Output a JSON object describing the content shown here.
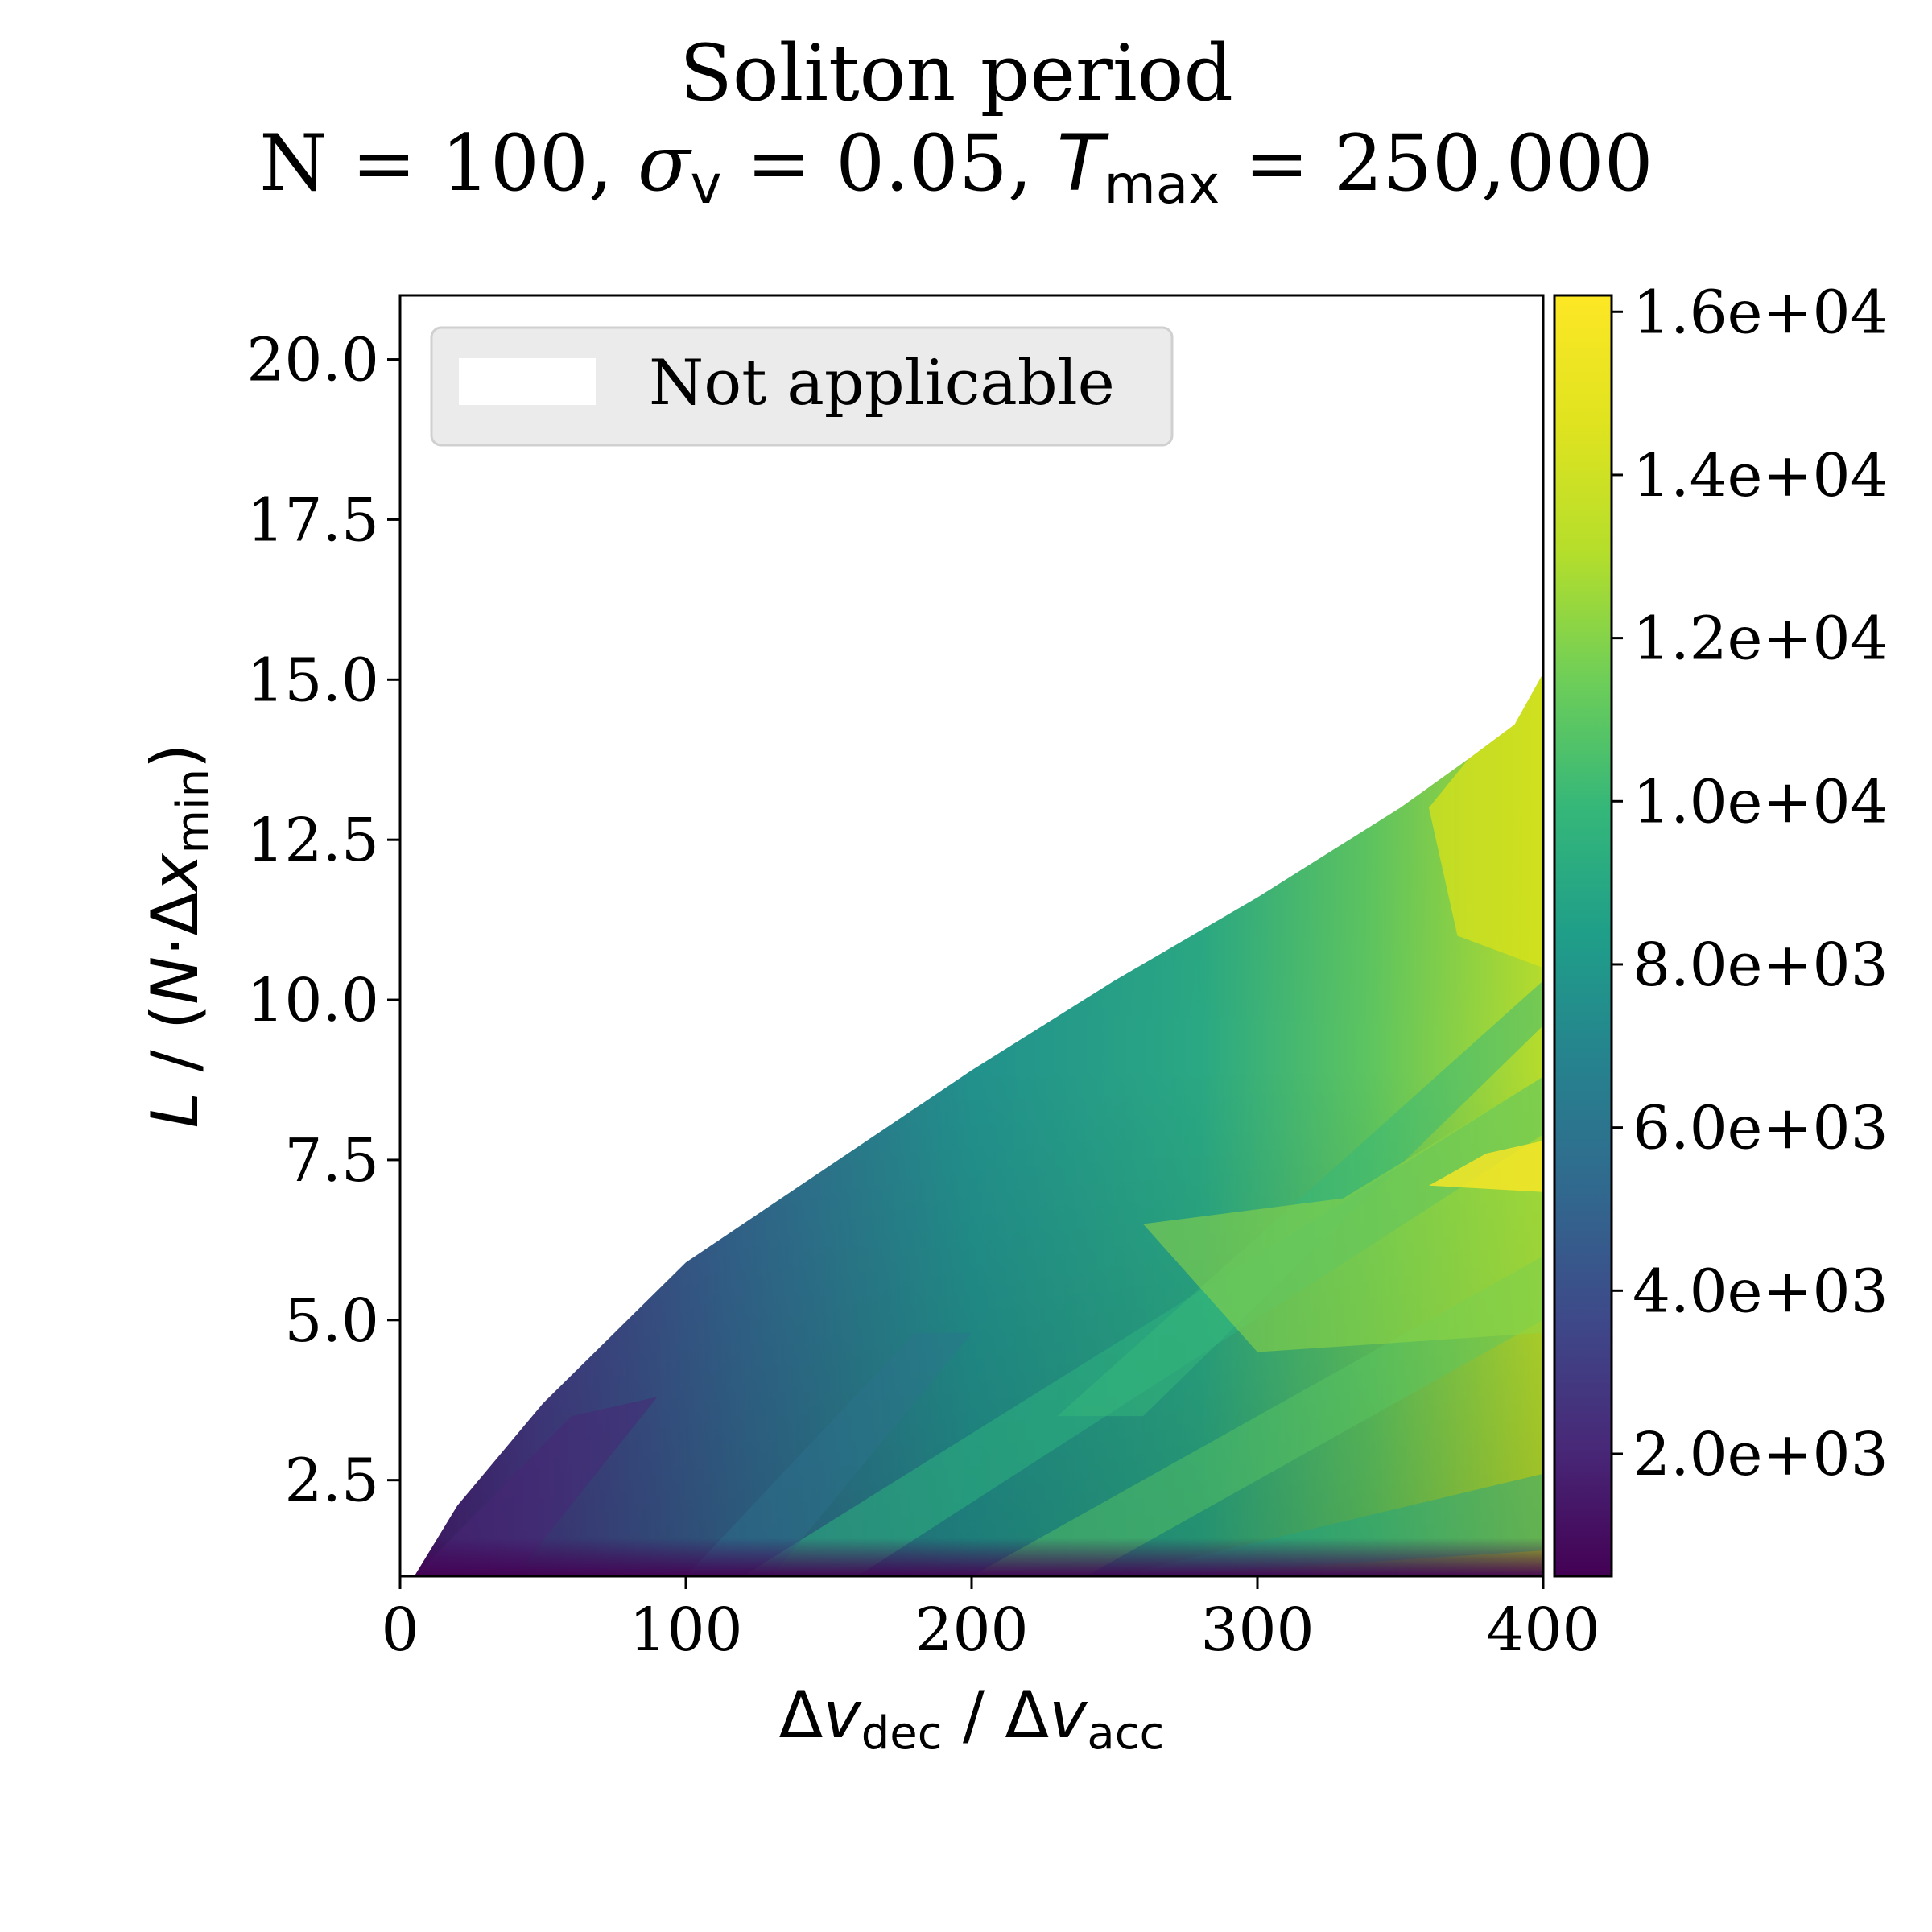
{
  "chart_data": {
    "type": "heatmap",
    "title": "Soliton period",
    "subtitle": {
      "prefix": "N = 100, ",
      "sigma": "σ",
      "sigma_sub": "v",
      "middle": " = 0.05, ",
      "t": "T",
      "t_sub": "max",
      "suffix": " = 250,000"
    },
    "xlabel": {
      "p1": "Δ",
      "v1": "v",
      "s1": "dec",
      "mid": " / Δ",
      "v2": "v",
      "s2": "acc"
    },
    "ylabel": {
      "p1": "L",
      "mid": " / (",
      "n": "N",
      "dot": "·Δ",
      "x": "x",
      "sub": "min",
      "close": ")"
    },
    "xlim": [
      0,
      400
    ],
    "ylim": [
      1.0,
      21.0
    ],
    "xticks": [
      0,
      100,
      200,
      300,
      400
    ],
    "xtick_labels": [
      "0",
      "100",
      "200",
      "300",
      "400"
    ],
    "yticks": [
      2.5,
      5.0,
      7.5,
      10.0,
      12.5,
      15.0,
      17.5,
      20.0
    ],
    "ytick_labels": [
      "2.5",
      "5.0",
      "7.5",
      "10.0",
      "12.5",
      "15.0",
      "17.5",
      "20.0"
    ],
    "colorbar": {
      "colormap": "viridis",
      "range": [
        500,
        16200
      ],
      "ticks": [
        2000,
        4000,
        6000,
        8000,
        10000,
        12000,
        14000,
        16000
      ],
      "tick_labels": [
        "2.0e+03",
        "4.0e+03",
        "6.0e+03",
        "8.0e+03",
        "1.0e+04",
        "1.2e+04",
        "1.4e+04",
        "1.6e+04"
      ]
    },
    "legend": {
      "entries": [
        "Not applicable"
      ],
      "placement": "top-left"
    },
    "valid_region_upper_boundary": {
      "x": [
        5,
        20,
        50,
        100,
        150,
        200,
        250,
        300,
        350,
        375,
        390,
        400
      ],
      "y": [
        1.0,
        2.1,
        3.7,
        5.9,
        7.4,
        8.9,
        10.3,
        11.6,
        13.0,
        13.8,
        14.3,
        15.1
      ]
    },
    "colors": {
      "not_applicable": "#ffffff",
      "legend_background": "#ebebeb",
      "axes": "#000000"
    }
  }
}
